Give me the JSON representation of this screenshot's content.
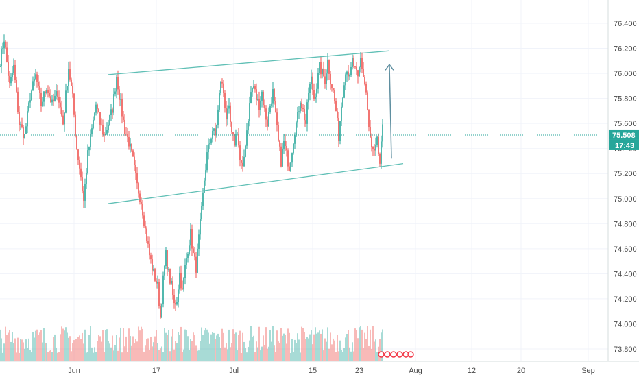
{
  "chart_data": {
    "type": "candlestick",
    "y_ticks": [
      "76.400",
      "76.200",
      "76.000",
      "75.800",
      "75.600",
      "75.400",
      "75.200",
      "75.000",
      "74.800",
      "74.600",
      "74.400",
      "74.200",
      "74.000",
      "73.800"
    ],
    "y_tick_values": [
      76.4,
      76.2,
      76.0,
      75.8,
      75.6,
      75.4,
      75.2,
      75.0,
      74.8,
      74.6,
      74.4,
      74.2,
      74.0,
      73.8
    ],
    "ylim": [
      73.72,
      76.52
    ],
    "x_ticks": [
      "Jun",
      "17",
      "Jul",
      "15",
      "23",
      "Aug",
      "12",
      "20",
      "Sep"
    ],
    "last_price": {
      "value": 75.508,
      "label": "75.508",
      "countdown": "17:43"
    },
    "anchors": [
      [
        0,
        76.1
      ],
      [
        3,
        76.28
      ],
      [
        7,
        75.9
      ],
      [
        10,
        76.05
      ],
      [
        14,
        75.6
      ],
      [
        18,
        75.5
      ],
      [
        22,
        75.82
      ],
      [
        26,
        75.98
      ],
      [
        30,
        75.75
      ],
      [
        34,
        75.9
      ],
      [
        38,
        75.75
      ],
      [
        42,
        75.85
      ],
      [
        46,
        75.6
      ],
      [
        50,
        76.05
      ],
      [
        53,
        75.8
      ],
      [
        56,
        75.4
      ],
      [
        59,
        75.18
      ],
      [
        61,
        74.98
      ],
      [
        64,
        75.35
      ],
      [
        67,
        75.55
      ],
      [
        70,
        75.75
      ],
      [
        73,
        75.6
      ],
      [
        76,
        75.5
      ],
      [
        79,
        75.6
      ],
      [
        82,
        75.72
      ],
      [
        85,
        75.98
      ],
      [
        88,
        75.75
      ],
      [
        91,
        75.55
      ],
      [
        94,
        75.45
      ],
      [
        97,
        75.3
      ],
      [
        100,
        75.1
      ],
      [
        103,
        74.98
      ],
      [
        106,
        74.75
      ],
      [
        109,
        74.55
      ],
      [
        112,
        74.4
      ],
      [
        115,
        74.3
      ],
      [
        117,
        74.05
      ],
      [
        119,
        74.35
      ],
      [
        121,
        74.55
      ],
      [
        123,
        74.4
      ],
      [
        125,
        74.3
      ],
      [
        127,
        74.15
      ],
      [
        129,
        74.2
      ],
      [
        131,
        74.4
      ],
      [
        133,
        74.25
      ],
      [
        135,
        74.45
      ],
      [
        137,
        74.6
      ],
      [
        139,
        74.72
      ],
      [
        141,
        74.55
      ],
      [
        143,
        74.45
      ],
      [
        145,
        74.68
      ],
      [
        147,
        74.9
      ],
      [
        149,
        75.15
      ],
      [
        151,
        75.35
      ],
      [
        153,
        75.45
      ],
      [
        155,
        75.55
      ],
      [
        157,
        75.5
      ],
      [
        159,
        75.7
      ],
      [
        161,
        75.95
      ],
      [
        163,
        75.85
      ],
      [
        165,
        75.65
      ],
      [
        167,
        75.7
      ],
      [
        169,
        75.5
      ],
      [
        171,
        75.45
      ],
      [
        173,
        75.55
      ],
      [
        175,
        75.3
      ],
      [
        177,
        75.22
      ],
      [
        179,
        75.45
      ],
      [
        181,
        75.65
      ],
      [
        183,
        75.85
      ],
      [
        185,
        75.9
      ],
      [
        187,
        75.8
      ],
      [
        189,
        75.75
      ],
      [
        191,
        75.85
      ],
      [
        193,
        75.7
      ],
      [
        195,
        75.6
      ],
      [
        197,
        75.75
      ],
      [
        199,
        75.85
      ],
      [
        201,
        75.65
      ],
      [
        203,
        75.45
      ],
      [
        205,
        75.3
      ],
      [
        207,
        75.45
      ],
      [
        209,
        75.35
      ],
      [
        211,
        75.25
      ],
      [
        213,
        75.4
      ],
      [
        215,
        75.55
      ],
      [
        217,
        75.65
      ],
      [
        219,
        75.8
      ],
      [
        221,
        75.7
      ],
      [
        223,
        75.6
      ],
      [
        225,
        75.85
      ],
      [
        227,
        75.95
      ],
      [
        229,
        75.8
      ],
      [
        231,
        75.9
      ],
      [
        233,
        76.05
      ],
      [
        235,
        76.0
      ],
      [
        237,
        75.95
      ],
      [
        239,
        76.1
      ],
      [
        241,
        75.95
      ],
      [
        243,
        75.85
      ],
      [
        245,
        75.7
      ],
      [
        247,
        75.5
      ],
      [
        249,
        75.75
      ],
      [
        251,
        75.95
      ],
      [
        253,
        76.05
      ],
      [
        255,
        75.95
      ],
      [
        257,
        76.1
      ],
      [
        259,
        76.02
      ],
      [
        261,
        75.95
      ],
      [
        263,
        76.12
      ],
      [
        265,
        75.98
      ],
      [
        267,
        75.85
      ],
      [
        269,
        75.55
      ],
      [
        271,
        75.4
      ],
      [
        273,
        75.35
      ],
      [
        275,
        75.45
      ],
      [
        277,
        75.28
      ],
      [
        279,
        75.55
      ]
    ],
    "channel_lines": [
      {
        "from": [
          54,
          75.99
        ],
        "to": [
          284,
          76.18
        ]
      },
      {
        "from": [
          54,
          74.96
        ],
        "to": [
          294,
          75.28
        ]
      }
    ],
    "arrow": {
      "from": [
        290,
        75.32
      ],
      "to": [
        288,
        76.07
      ]
    },
    "colors": {
      "up": "#26a69a",
      "down": "#ef5350",
      "channel": "#5fbfb5",
      "arrow": "#5f8fa0",
      "price": "#26a69a"
    }
  }
}
